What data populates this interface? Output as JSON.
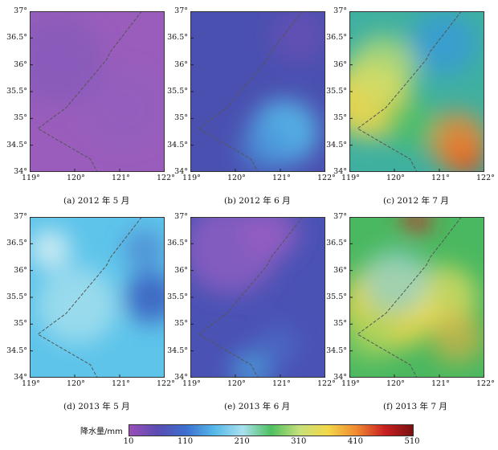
{
  "panels": [
    {
      "id": "a",
      "caption": "(a) 2012 年 5 月",
      "base": "#9a5dbc",
      "blobs": [
        [
          0.2,
          0.3,
          0.35,
          "#7a5ab8",
          0.5
        ],
        [
          0.7,
          0.6,
          0.3,
          "#8a5fc0",
          0.4
        ]
      ]
    },
    {
      "id": "b",
      "caption": "(b) 2012 年 6 月",
      "base": "#4a50b0",
      "blobs": [
        [
          0.7,
          0.75,
          0.25,
          "#55b8e8",
          0.9
        ],
        [
          0.55,
          0.85,
          0.2,
          "#4a8fd8",
          0.6
        ],
        [
          0.8,
          0.15,
          0.2,
          "#7a4fb8",
          0.5
        ]
      ]
    },
    {
      "id": "c",
      "caption": "(c) 2012 年 7 月",
      "base": "#3fb0a0",
      "blobs": [
        [
          0.15,
          0.55,
          0.3,
          "#f2d84a",
          0.9
        ],
        [
          0.25,
          0.35,
          0.25,
          "#c8e070",
          0.7
        ],
        [
          0.85,
          0.9,
          0.15,
          "#c82020",
          1.0
        ],
        [
          0.8,
          0.8,
          0.22,
          "#f08a30",
          0.8
        ],
        [
          0.7,
          0.2,
          0.25,
          "#3a9ad8",
          0.8
        ],
        [
          0.45,
          0.7,
          0.2,
          "#4ac060",
          0.7
        ]
      ]
    },
    {
      "id": "d",
      "caption": "(d) 2013 年 5 月",
      "base": "#5ec4ea",
      "blobs": [
        [
          0.35,
          0.55,
          0.3,
          "#a8e0ee",
          0.8
        ],
        [
          0.15,
          0.2,
          0.15,
          "#d8f0f4",
          0.9
        ],
        [
          0.9,
          0.5,
          0.2,
          "#3a60c0",
          0.9
        ],
        [
          0.85,
          0.2,
          0.15,
          "#4a70c8",
          0.6
        ]
      ]
    },
    {
      "id": "e",
      "caption": "(e) 2013 年 6 月",
      "base": "#4a52b4",
      "blobs": [
        [
          0.3,
          0.2,
          0.35,
          "#8a5cc0",
          0.9
        ],
        [
          0.6,
          0.1,
          0.2,
          "#9a5fc2",
          0.8
        ],
        [
          0.45,
          0.95,
          0.15,
          "#4aa8e0",
          0.7
        ],
        [
          0.65,
          0.8,
          0.15,
          "#4a7ad0",
          0.5
        ]
      ]
    },
    {
      "id": "f",
      "caption": "(f) 2013 年 7 月",
      "base": "#4ab860",
      "blobs": [
        [
          0.3,
          0.55,
          0.35,
          "#f2d84a",
          0.85
        ],
        [
          0.7,
          0.5,
          0.25,
          "#f0e060",
          0.7
        ],
        [
          0.5,
          0.02,
          0.1,
          "#c82828",
          0.9
        ],
        [
          0.35,
          0.4,
          0.25,
          "#8ad0d8",
          0.7
        ],
        [
          0.15,
          0.75,
          0.2,
          "#9ad060",
          0.6
        ],
        [
          0.8,
          0.75,
          0.2,
          "#f0b040",
          0.6
        ]
      ]
    }
  ],
  "axes": {
    "y_labels": [
      "37°",
      "36.5°",
      "36°",
      "35.5°",
      "35°",
      "34.5°",
      "34°"
    ],
    "x_labels": [
      "119°",
      "120°",
      "121°",
      "122°"
    ]
  },
  "legend": {
    "title": "降水量/mm",
    "ticks": [
      "10",
      "110",
      "210",
      "310",
      "410",
      "510"
    ],
    "colors": [
      "#9b4fb8",
      "#5a4cb2",
      "#3c6fd0",
      "#55b8e8",
      "#a9e1ef",
      "#4ec060",
      "#c6e07a",
      "#f2d84a",
      "#f08a30",
      "#c82020",
      "#7a1010"
    ]
  }
}
